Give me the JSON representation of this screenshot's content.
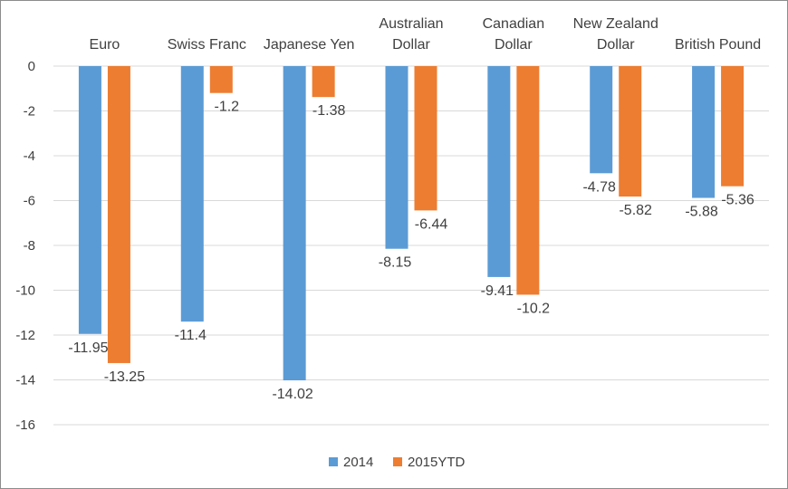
{
  "chart_data": {
    "type": "bar",
    "categories": [
      [
        "Euro"
      ],
      [
        "Swiss Franc"
      ],
      [
        "Japanese Yen"
      ],
      [
        "Australian",
        "Dollar"
      ],
      [
        "Canadian",
        "Dollar"
      ],
      [
        "New Zealand",
        "Dollar"
      ],
      [
        "British Pound"
      ]
    ],
    "series": [
      {
        "name": "2014",
        "values": [
          -11.95,
          -11.4,
          -14.02,
          -8.15,
          -9.41,
          -4.78,
          -5.88
        ],
        "labels": [
          "-11.95",
          "-11.4",
          "-14.02",
          "-8.15",
          "-9.41",
          "-4.78",
          "-5.88"
        ],
        "color": "#5b9bd5"
      },
      {
        "name": "2015YTD",
        "values": [
          -13.25,
          -1.2,
          -1.38,
          -6.44,
          -10.2,
          -5.82,
          -5.36
        ],
        "labels": [
          "-13.25",
          "-1.2",
          "-1.38",
          "-6.44",
          "-10.2",
          "-5.82",
          "-5.36"
        ],
        "color": "#ed7d31"
      }
    ],
    "ylim": [
      -16,
      0
    ],
    "yticks": [
      0,
      -2,
      -4,
      -6,
      -8,
      -10,
      -12,
      -14,
      -16
    ],
    "title": "",
    "xlabel": "",
    "ylabel": "",
    "grid": true,
    "category_labels_position": "top",
    "legend_position": "bottom",
    "gridline_color": "#d9d9d9",
    "text_color": "#404040"
  }
}
